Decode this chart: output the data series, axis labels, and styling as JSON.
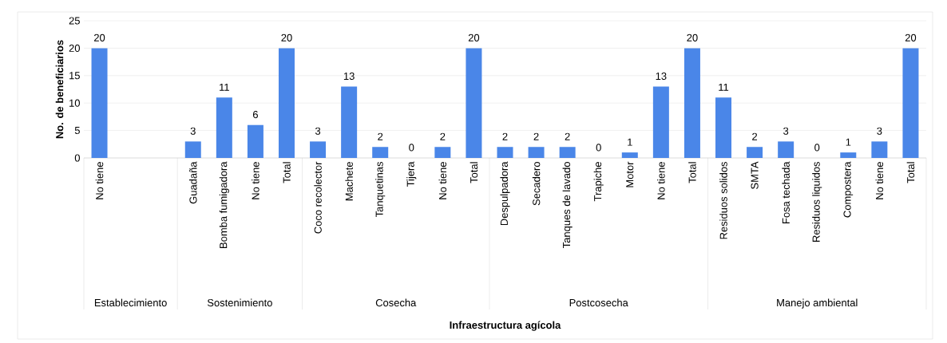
{
  "chart_data": {
    "type": "bar",
    "ylabel": "No. de beneficiarios",
    "categories": [
      "No tiene",
      null,
      null,
      "Guadaña",
      "Bomba fumigadora",
      "No tiene",
      "Total",
      "Coco recolector",
      "Machete",
      "Tanquetinas",
      "Tijera",
      "No tiene",
      "Total",
      "Despulpadora",
      "Secadero",
      "Tanques de lavado",
      "Trapiche",
      "Motor",
      "No tiene",
      "Total",
      "Residuos solidos",
      "SMTA",
      "Fosa techada",
      "Residuos liquidos",
      "Compostera",
      "No tiene",
      "Total"
    ],
    "values": [
      20,
      null,
      null,
      3,
      11,
      6,
      20,
      3,
      13,
      2,
      0,
      2,
      20,
      2,
      2,
      2,
      0,
      1,
      13,
      20,
      11,
      2,
      3,
      0,
      1,
      3,
      20
    ],
    "color": "#4a86e8",
    "ylim": [
      0,
      25
    ],
    "yticks": [
      0,
      5,
      10,
      15,
      20,
      25
    ],
    "grid": "y",
    "data_labels": true,
    "annotations": [
      "Establecimiento",
      "Sostenimiento",
      "Cosecha",
      "Postcosecha",
      "Manejo ambiental",
      "Infraestructura agícola"
    ]
  }
}
